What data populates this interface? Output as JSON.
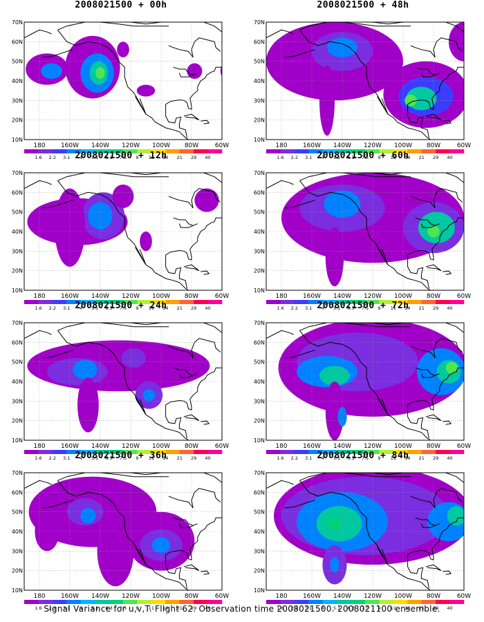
{
  "figure": {
    "footer": "Signal Variance for u,v,T. Flight 62. Observation time 2008021500. 2008021100 ensemble.",
    "lat_labels": [
      "70N",
      "60N",
      "50N",
      "40N",
      "30N",
      "20N",
      "10N"
    ],
    "lon_labels": [
      "180",
      "160W",
      "140W",
      "120W",
      "100W",
      "80W",
      "60W"
    ],
    "colorbar": {
      "values": [
        "1.6",
        "2.2",
        "3.1",
        "4",
        "5.1",
        "6.3",
        "7.5",
        "9",
        "11",
        "14",
        "21",
        "29",
        "40"
      ],
      "colors": [
        "#a000c8",
        "#7a2ee0",
        "#3c3cff",
        "#0082ff",
        "#00b4ff",
        "#00c8a0",
        "#00d278",
        "#50e650",
        "#b4f032",
        "#ffdc00",
        "#ffa000",
        "#ff6432",
        "#ff0050",
        "#ff0096"
      ]
    },
    "fill_colors": {
      "purple": "#a000c8",
      "violet": "#7a2ee0",
      "blue": "#3c3cff",
      "azure": "#0082ff",
      "cyan": "#00b4ff",
      "teal": "#00c8a0",
      "green": "#00d278",
      "lime": "#50e650"
    },
    "panels": [
      {
        "id": "p00",
        "title": "2008021500 + 00h",
        "blobs": [
          {
            "lon": -175,
            "lat": 46,
            "rx": 14,
            "ry": 8,
            "level": "purple"
          },
          {
            "lon": -172,
            "lat": 45,
            "rx": 7,
            "ry": 4,
            "level": "azure"
          },
          {
            "lon": -145,
            "lat": 47,
            "rx": 18,
            "ry": 16,
            "level": "purple"
          },
          {
            "lon": -142,
            "lat": 44,
            "rx": 11,
            "ry": 10,
            "level": "azure"
          },
          {
            "lon": -141,
            "lat": 44,
            "rx": 6,
            "ry": 6,
            "level": "teal"
          },
          {
            "lon": -140,
            "lat": 44,
            "rx": 3,
            "ry": 3,
            "level": "lime"
          },
          {
            "lon": -110,
            "lat": 35,
            "rx": 6,
            "ry": 3,
            "level": "purple"
          },
          {
            "lon": -125,
            "lat": 56,
            "rx": 4,
            "ry": 4,
            "level": "purple"
          },
          {
            "lon": -78,
            "lat": 45,
            "rx": 5,
            "ry": 4,
            "level": "purple"
          },
          {
            "lon": -55,
            "lat": 45,
            "rx": 6,
            "ry": 5,
            "level": "purple"
          }
        ]
      },
      {
        "id": "p48",
        "title": "2008021500 + 48h",
        "blobs": [
          {
            "lon": -145,
            "lat": 50,
            "rx": 45,
            "ry": 20,
            "level": "purple"
          },
          {
            "lon": -140,
            "lat": 55,
            "rx": 20,
            "ry": 10,
            "level": "violet"
          },
          {
            "lon": -140,
            "lat": 57,
            "rx": 10,
            "ry": 5,
            "level": "azure"
          },
          {
            "lon": -150,
            "lat": 30,
            "rx": 5,
            "ry": 18,
            "level": "purple"
          },
          {
            "lon": -85,
            "lat": 33,
            "rx": 28,
            "ry": 17,
            "level": "purple"
          },
          {
            "lon": -85,
            "lat": 32,
            "rx": 18,
            "ry": 10,
            "level": "blue"
          },
          {
            "lon": -88,
            "lat": 31,
            "rx": 10,
            "ry": 6,
            "level": "teal"
          },
          {
            "lon": -95,
            "lat": 30,
            "rx": 4,
            "ry": 3,
            "level": "lime"
          },
          {
            "lon": -60,
            "lat": 60,
            "rx": 10,
            "ry": 10,
            "level": "purple"
          }
        ]
      },
      {
        "id": "p12",
        "title": "2008021500 + 12h",
        "blobs": [
          {
            "lon": -155,
            "lat": 45,
            "rx": 33,
            "ry": 12,
            "level": "purple"
          },
          {
            "lon": -138,
            "lat": 48,
            "rx": 14,
            "ry": 12,
            "level": "violet"
          },
          {
            "lon": -140,
            "lat": 48,
            "rx": 8,
            "ry": 7,
            "level": "azure"
          },
          {
            "lon": -160,
            "lat": 42,
            "rx": 10,
            "ry": 20,
            "level": "purple"
          },
          {
            "lon": -125,
            "lat": 58,
            "rx": 7,
            "ry": 6,
            "level": "purple"
          },
          {
            "lon": -110,
            "lat": 35,
            "rx": 4,
            "ry": 5,
            "level": "purple"
          },
          {
            "lon": -70,
            "lat": 56,
            "rx": 8,
            "ry": 6,
            "level": "purple"
          }
        ]
      },
      {
        "id": "p60",
        "title": "2008021500 + 60h",
        "blobs": [
          {
            "lon": -120,
            "lat": 47,
            "rx": 60,
            "ry": 23,
            "level": "purple"
          },
          {
            "lon": -140,
            "lat": 52,
            "rx": 28,
            "ry": 12,
            "level": "violet"
          },
          {
            "lon": -140,
            "lat": 54,
            "rx": 12,
            "ry": 7,
            "level": "azure"
          },
          {
            "lon": -145,
            "lat": 27,
            "rx": 6,
            "ry": 15,
            "level": "purple"
          },
          {
            "lon": -80,
            "lat": 42,
            "rx": 20,
            "ry": 13,
            "level": "violet"
          },
          {
            "lon": -78,
            "lat": 42,
            "rx": 12,
            "ry": 8,
            "level": "teal"
          },
          {
            "lon": -80,
            "lat": 40,
            "rx": 4,
            "ry": 3,
            "level": "lime"
          }
        ]
      },
      {
        "id": "p24",
        "title": "2008021500 + 24h",
        "blobs": [
          {
            "lon": -128,
            "lat": 48,
            "rx": 60,
            "ry": 13,
            "level": "purple"
          },
          {
            "lon": -155,
            "lat": 45,
            "rx": 20,
            "ry": 7,
            "level": "violet"
          },
          {
            "lon": -150,
            "lat": 46,
            "rx": 8,
            "ry": 5,
            "level": "azure"
          },
          {
            "lon": -118,
            "lat": 52,
            "rx": 8,
            "ry": 5,
            "level": "violet"
          },
          {
            "lon": -148,
            "lat": 28,
            "rx": 7,
            "ry": 14,
            "level": "purple"
          },
          {
            "lon": -108,
            "lat": 33,
            "rx": 9,
            "ry": 7,
            "level": "violet"
          },
          {
            "lon": -108,
            "lat": 33,
            "rx": 4,
            "ry": 3,
            "level": "azure"
          }
        ]
      },
      {
        "id": "p72",
        "title": "2008021500 + 72h",
        "blobs": [
          {
            "lon": -120,
            "lat": 47,
            "rx": 62,
            "ry": 25,
            "level": "purple"
          },
          {
            "lon": -130,
            "lat": 50,
            "rx": 40,
            "ry": 15,
            "level": "violet"
          },
          {
            "lon": -150,
            "lat": 45,
            "rx": 20,
            "ry": 8,
            "level": "azure"
          },
          {
            "lon": -145,
            "lat": 43,
            "rx": 10,
            "ry": 5,
            "level": "teal"
          },
          {
            "lon": -145,
            "lat": 25,
            "rx": 6,
            "ry": 15,
            "level": "purple"
          },
          {
            "lon": -140,
            "lat": 22,
            "rx": 3,
            "ry": 5,
            "level": "azure"
          },
          {
            "lon": -75,
            "lat": 45,
            "rx": 16,
            "ry": 12,
            "level": "azure"
          },
          {
            "lon": -70,
            "lat": 45,
            "rx": 8,
            "ry": 6,
            "level": "teal"
          },
          {
            "lon": -68,
            "lat": 47,
            "rx": 4,
            "ry": 3,
            "level": "lime"
          }
        ]
      },
      {
        "id": "p36",
        "title": "2008021500 + 36h",
        "blobs": [
          {
            "lon": -145,
            "lat": 50,
            "rx": 42,
            "ry": 18,
            "level": "purple"
          },
          {
            "lon": -150,
            "lat": 50,
            "rx": 12,
            "ry": 7,
            "level": "violet"
          },
          {
            "lon": -148,
            "lat": 48,
            "rx": 5,
            "ry": 4,
            "level": "azure"
          },
          {
            "lon": -130,
            "lat": 30,
            "rx": 12,
            "ry": 18,
            "level": "purple"
          },
          {
            "lon": -100,
            "lat": 35,
            "rx": 22,
            "ry": 15,
            "level": "purple"
          },
          {
            "lon": -100,
            "lat": 33,
            "rx": 14,
            "ry": 8,
            "level": "violet"
          },
          {
            "lon": -100,
            "lat": 33,
            "rx": 6,
            "ry": 4,
            "level": "azure"
          },
          {
            "lon": -120,
            "lat": 55,
            "rx": 10,
            "ry": 7,
            "level": "purple"
          },
          {
            "lon": -175,
            "lat": 40,
            "rx": 8,
            "ry": 10,
            "level": "purple"
          }
        ]
      },
      {
        "id": "p84",
        "title": "2008021500 + 84h",
        "blobs": [
          {
            "lon": -120,
            "lat": 48,
            "rx": 65,
            "ry": 25,
            "level": "purple"
          },
          {
            "lon": -125,
            "lat": 48,
            "rx": 55,
            "ry": 20,
            "level": "violet"
          },
          {
            "lon": -140,
            "lat": 45,
            "rx": 30,
            "ry": 15,
            "level": "azure"
          },
          {
            "lon": -142,
            "lat": 44,
            "rx": 15,
            "ry": 9,
            "level": "teal"
          },
          {
            "lon": -145,
            "lat": 44,
            "rx": 5,
            "ry": 3,
            "level": "green"
          },
          {
            "lon": -145,
            "lat": 23,
            "rx": 8,
            "ry": 10,
            "level": "violet"
          },
          {
            "lon": -145,
            "lat": 23,
            "rx": 3,
            "ry": 4,
            "level": "azure"
          },
          {
            "lon": -70,
            "lat": 45,
            "rx": 14,
            "ry": 10,
            "level": "azure"
          },
          {
            "lon": -65,
            "lat": 48,
            "rx": 6,
            "ry": 5,
            "level": "teal"
          }
        ]
      }
    ]
  }
}
